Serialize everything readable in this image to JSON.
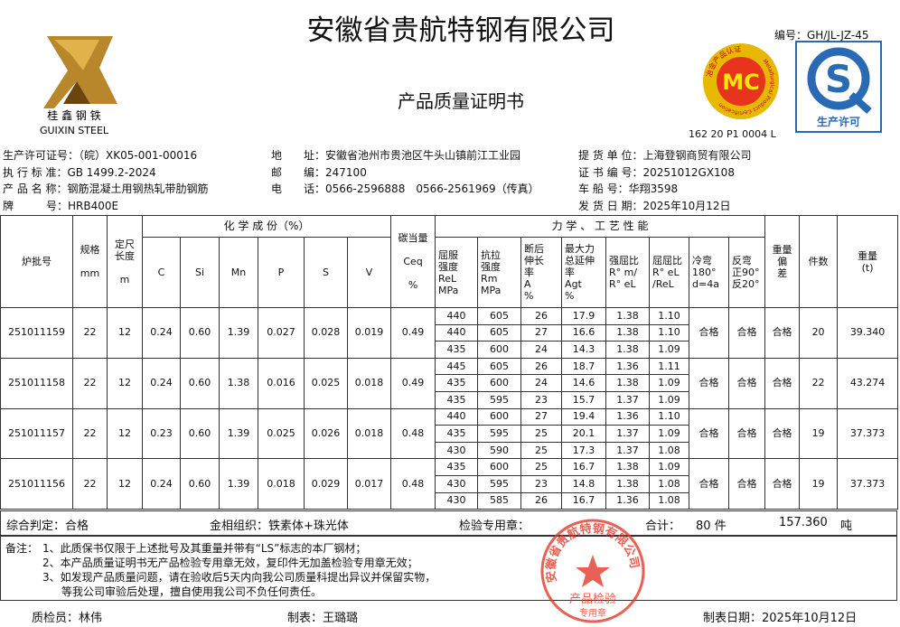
{
  "header": {
    "company": "安徽省贵航特钢有限公司",
    "doc_no": "编号：GH/JL-JZ-45",
    "title": "产品质量证明书",
    "logo_cn": "桂 鑫 钢 铁",
    "logo_en": "GUIXIN STEEL",
    "mc_mark": "MC",
    "mc_ring_cn": "冶金产品认证",
    "mc_ring_en": "Metallurgical Product Certification",
    "mc_code": "162 20 P1 0004 L",
    "qs_mark": "S",
    "qs_text": "生产许可"
  },
  "info": {
    "left": [
      {
        "label": "生产许可证号：",
        "value": "（皖）XK05-001-00016"
      },
      {
        "label": "执 行 标 准：",
        "value": "GB 1499.2-2024"
      },
      {
        "label": "产 品 名 称：",
        "value": "钢筋混凝土用钢热轧带肋钢筋"
      },
      {
        "label": "牌　　　号：",
        "value": "HRB400E"
      }
    ],
    "middle": [
      {
        "label": "地　　址：",
        "value": "安徽省池州市贵池区牛头山镇前江工业园"
      },
      {
        "label": "邮　　编：",
        "value": "247100"
      },
      {
        "label": "电　　话：",
        "value": "0566-2596888　0566-2561969（传真）"
      }
    ],
    "right": [
      {
        "label": "提 货 单 位：",
        "value": "上海登钢商贸有限公司"
      },
      {
        "label": "证 书 编 号：",
        "value": "20251012GX108"
      },
      {
        "label": "车 船 号：",
        "value": "华翔3598"
      },
      {
        "label": "发 货 日 期：",
        "value": "2025年10月12日"
      }
    ]
  },
  "table": {
    "headers": {
      "batch": "炉批号",
      "spec": "规格\n\nmm",
      "length": "定尺\n长度\n\nm",
      "chem": "化 学 成 份（%）",
      "elements": [
        "C",
        "Si",
        "Mn",
        "P",
        "S",
        "V"
      ],
      "ceq": "碳当量\n\nCeq\n\n%",
      "mech": "力 学 、 工 艺 性 能",
      "mech_cols": [
        "屈服\n强度\nReL\nMPa",
        "抗拉\n强度\nRm\nMPa",
        "断后\n伸长\n率\nA\n%",
        "最大力\n总延伸\n率\nAgt\n%",
        "强屈比\nR° m/\nR° eL",
        "屈屈比\nR° eL\n/ReL",
        "冷弯\n180°\nd=4a",
        "反弯\n正90°\n反20°"
      ],
      "weight_dev": "重量\n偏\n差",
      "pieces": "件数",
      "weight": "重量\n(t)"
    },
    "rows": [
      {
        "batch": "251011159",
        "spec": "22",
        "length": "12",
        "chem": [
          "0.24",
          "0.60",
          "1.39",
          "0.027",
          "0.028",
          "0.019"
        ],
        "ceq": "0.49",
        "tests": [
          [
            "440",
            "605",
            "26",
            "17.9",
            "1.38",
            "1.10"
          ],
          [
            "440",
            "605",
            "27",
            "16.6",
            "1.38",
            "1.10"
          ],
          [
            "435",
            "600",
            "24",
            "14.3",
            "1.38",
            "1.09"
          ]
        ],
        "bend": "合格",
        "rebend": "合格",
        "weight_dev": "合格",
        "pieces": "20",
        "weight": "39.340"
      },
      {
        "batch": "251011158",
        "spec": "22",
        "length": "12",
        "chem": [
          "0.24",
          "0.60",
          "1.38",
          "0.016",
          "0.025",
          "0.018"
        ],
        "ceq": "0.49",
        "tests": [
          [
            "445",
            "605",
            "26",
            "18.7",
            "1.36",
            "1.11"
          ],
          [
            "435",
            "600",
            "24",
            "14.6",
            "1.38",
            "1.09"
          ],
          [
            "435",
            "595",
            "23",
            "15.7",
            "1.37",
            "1.09"
          ]
        ],
        "bend": "合格",
        "rebend": "合格",
        "weight_dev": "合格",
        "pieces": "22",
        "weight": "43.274"
      },
      {
        "batch": "251011157",
        "spec": "22",
        "length": "12",
        "chem": [
          "0.23",
          "0.60",
          "1.39",
          "0.025",
          "0.026",
          "0.018"
        ],
        "ceq": "0.48",
        "tests": [
          [
            "440",
            "600",
            "27",
            "19.4",
            "1.36",
            "1.10"
          ],
          [
            "435",
            "595",
            "25",
            "20.1",
            "1.37",
            "1.09"
          ],
          [
            "430",
            "590",
            "25",
            "17.3",
            "1.37",
            "1.08"
          ]
        ],
        "bend": "合格",
        "rebend": "合格",
        "weight_dev": "合格",
        "pieces": "19",
        "weight": "37.373"
      },
      {
        "batch": "251011156",
        "spec": "22",
        "length": "12",
        "chem": [
          "0.24",
          "0.60",
          "1.39",
          "0.018",
          "0.029",
          "0.017"
        ],
        "ceq": "0.48",
        "tests": [
          [
            "435",
            "600",
            "25",
            "16.7",
            "1.38",
            "1.09"
          ],
          [
            "430",
            "595",
            "23",
            "14.8",
            "1.38",
            "1.08"
          ],
          [
            "430",
            "585",
            "26",
            "16.7",
            "1.36",
            "1.08"
          ]
        ],
        "bend": "合格",
        "rebend": "合格",
        "weight_dev": "合格",
        "pieces": "19",
        "weight": "37.373"
      }
    ]
  },
  "summary": {
    "verdict": "综合判定：合格",
    "structure": "金相组织：铁素体+珠光体",
    "stamp_label": "检验专用章：",
    "total_label": "合计：",
    "total_pieces": "80 件",
    "total_weight": "157.360",
    "weight_unit": "吨"
  },
  "notes": {
    "label": "备注：",
    "lines": [
      "1、此质保书仅限于上述批号及其重量并带有“LS”标志的本厂钢材；",
      "2、本产品质量证明书无产品检验专用章无效，复印件无加盖检验专用章无效；",
      "3、如发现产品质量问题，请在验收后5天内向我公司质量科提出异议并保留实物，",
      "等我公司审验后处理，擅自使用我公司不负任何责任。"
    ]
  },
  "stamp": {
    "ring": "安徽省贵航特钢有限公司",
    "center": "产品检验",
    "bottom": "专用章"
  },
  "signatures": [
    {
      "label": "质检员：",
      "value": "林伟"
    },
    {
      "label": "制表：",
      "value": "王璐璐"
    },
    {
      "label": "制表日期：",
      "value": "2025年10月12日"
    }
  ]
}
